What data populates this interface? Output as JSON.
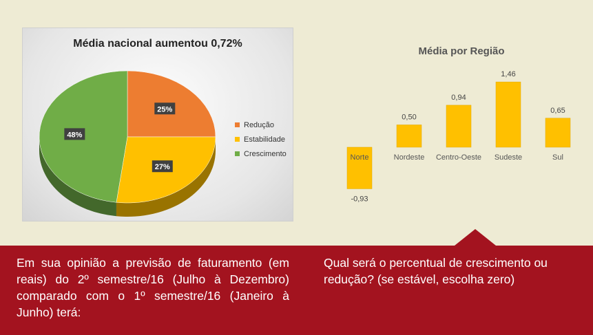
{
  "pie": {
    "title": "Média nacional aumentou 0,72%",
    "colors": {
      "Redução": "#ed7d31",
      "Estabilidade": "#ffc000",
      "Crescimento": "#70ad47"
    }
  },
  "bars": {
    "title": "Média por Região",
    "bar_color": "#ffc000"
  },
  "chart_data": [
    {
      "type": "pie",
      "title": "Média nacional aumentou 0,72%",
      "categories": [
        "Redução",
        "Estabilidade",
        "Crescimento"
      ],
      "values": [
        25,
        27,
        48
      ],
      "labels": [
        "25%",
        "27%",
        "48%"
      ],
      "legend": "right"
    },
    {
      "type": "bar",
      "title": "Média por Região",
      "categories": [
        "Norte",
        "Nordeste",
        "Centro-Oeste",
        "Sudeste",
        "Sul"
      ],
      "values": [
        -0.93,
        0.5,
        0.94,
        1.46,
        0.65
      ],
      "labels": [
        "-0,93",
        "0,50",
        "0,94",
        "1,46",
        "0,65"
      ],
      "ylim": [
        -1.0,
        1.5
      ]
    }
  ],
  "question": {
    "left": "Em sua opinião a previsão de faturamento (em reais) do 2º semestre/16 (Julho à Dezembro) comparado com o  1º semestre/16 (Janeiro à Junho) terá:",
    "right": "Qual será o percentual de crescimento ou redução? (se estável, escolha zero)"
  }
}
